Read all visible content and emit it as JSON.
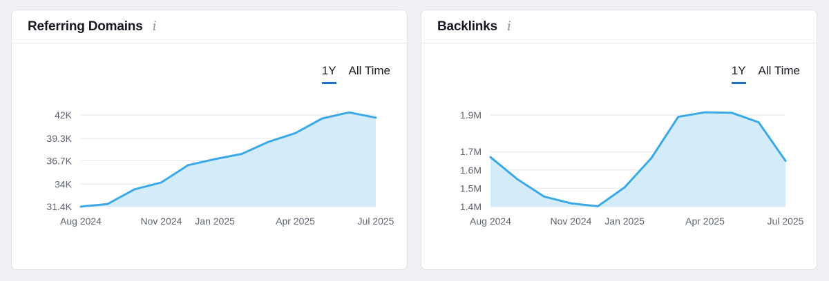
{
  "cards": [
    {
      "title": "Referring Domains",
      "info_icon": "info-icon",
      "tabs": [
        {
          "label": "1Y",
          "active": true
        },
        {
          "label": "All Time",
          "active": false
        }
      ]
    },
    {
      "title": "Backlinks",
      "info_icon": "info-icon",
      "tabs": [
        {
          "label": "1Y",
          "active": true
        },
        {
          "label": "All Time",
          "active": false
        }
      ]
    }
  ],
  "colors": {
    "line": "#3aa9e6",
    "area": "#d4ecfa",
    "grid": "#e3e6ea",
    "tab_underline": "#1f6fd1"
  },
  "chart_data": [
    {
      "type": "area",
      "x": [
        "2024-08",
        "2024-09",
        "2024-10",
        "2024-11",
        "2024-12",
        "2025-01",
        "2025-02",
        "2025-03",
        "2025-04",
        "2025-05",
        "2025-06",
        "2025-07"
      ],
      "x_tick_labels": [
        "Aug 2024",
        "Nov 2024",
        "Jan 2025",
        "Apr 2025",
        "Jul 2025"
      ],
      "x_tick_positions": [
        "2024-08",
        "2024-11",
        "2025-01",
        "2025-04",
        "2025-07"
      ],
      "y_tick_labels": [
        "42K",
        "39.3K",
        "36.7K",
        "34K",
        "31.4K"
      ],
      "y_tick_values": [
        42000,
        39300,
        36700,
        34000,
        31400
      ],
      "ylim": [
        31400,
        42000
      ],
      "series": [
        {
          "values": [
            31400,
            31700,
            33400,
            34200,
            36200,
            36900,
            37500,
            38900,
            39900,
            41600,
            42300,
            41700
          ]
        }
      ],
      "grid": true
    },
    {
      "type": "area",
      "x": [
        "2024-08",
        "2024-09",
        "2024-10",
        "2024-11",
        "2024-12",
        "2025-01",
        "2025-02",
        "2025-03",
        "2025-04",
        "2025-05",
        "2025-06",
        "2025-07"
      ],
      "x_tick_labels": [
        "Aug 2024",
        "Nov 2024",
        "Jan 2025",
        "Apr 2025",
        "Jul 2025"
      ],
      "x_tick_positions": [
        "2024-08",
        "2024-11",
        "2025-01",
        "2025-04",
        "2025-07"
      ],
      "y_tick_labels": [
        "1.9M",
        "1.7M",
        "1.6M",
        "1.5M",
        "1.4M"
      ],
      "y_tick_values": [
        1900000,
        1700000,
        1600000,
        1500000,
        1400000
      ],
      "ylim": [
        1400000,
        1900000
      ],
      "series": [
        {
          "values": [
            1670000,
            1550000,
            1455000,
            1418000,
            1402000,
            1505000,
            1665000,
            1890000,
            1915000,
            1912000,
            1860000,
            1650000
          ]
        }
      ],
      "grid": true
    }
  ]
}
